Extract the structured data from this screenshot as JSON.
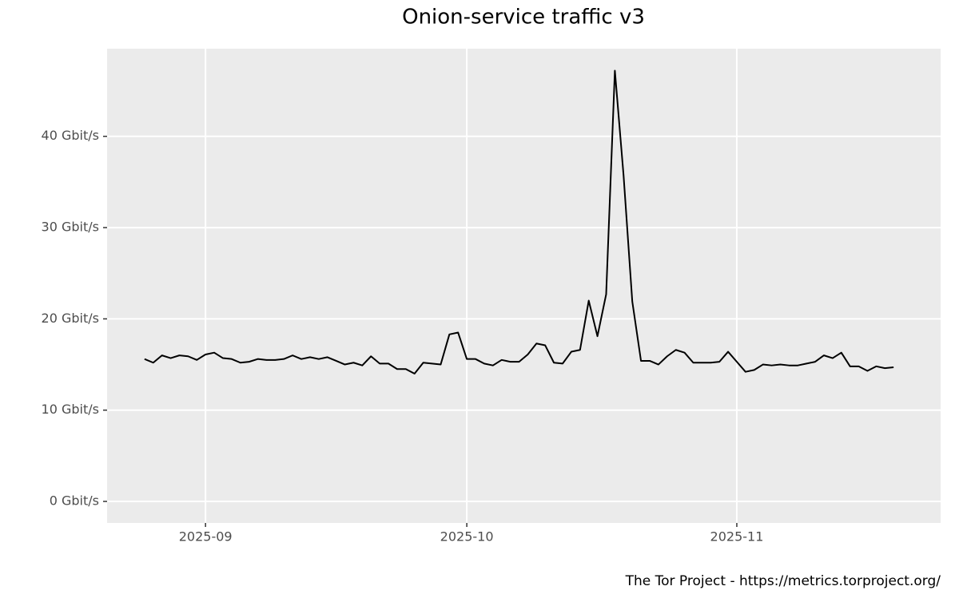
{
  "chart_data": {
    "type": "line",
    "title": "Onion-service traffic v3",
    "caption": "The Tor Project - https://metrics.torproject.org/",
    "color": "#000000",
    "values": [
      15.6,
      15.2,
      16.0,
      15.7,
      16.0,
      15.9,
      15.5,
      16.1,
      16.3,
      15.7,
      15.6,
      15.2,
      15.3,
      15.6,
      15.5,
      15.5,
      15.6,
      16.0,
      15.6,
      15.8,
      15.6,
      15.8,
      15.4,
      15.0,
      15.2,
      14.9,
      15.9,
      15.1,
      15.1,
      14.5,
      14.5,
      14.0,
      15.2,
      15.1,
      15.0,
      18.3,
      18.5,
      15.6,
      15.6,
      15.1,
      14.9,
      15.5,
      15.3,
      15.3,
      16.1,
      17.3,
      17.1,
      15.2,
      15.1,
      16.4,
      16.6,
      22.0,
      18.1,
      22.7,
      47.2,
      35.7,
      21.9,
      15.4,
      15.4,
      15.0,
      15.9,
      16.6,
      16.3,
      15.2,
      15.2,
      15.2,
      15.3,
      16.4,
      15.3,
      14.2,
      14.4,
      15.0,
      14.9,
      15.0,
      14.9,
      14.9,
      15.1,
      15.3,
      16.0,
      15.7,
      16.3,
      14.8,
      14.8,
      14.3,
      14.8,
      14.6,
      14.7
    ],
    "xlim": [
      -4.3,
      91.4
    ],
    "xticks": [
      {
        "value": 7,
        "label": "2025-09"
      },
      {
        "value": 37,
        "label": "2025-10"
      },
      {
        "value": 68,
        "label": "2025-11"
      }
    ],
    "ylim": [
      -2.36,
      49.6
    ],
    "yticks": [
      {
        "value": 0,
        "label": "0 Gbit/s"
      },
      {
        "value": 10,
        "label": "10 Gbit/s"
      },
      {
        "value": 20,
        "label": "20 Gbit/s"
      },
      {
        "value": 30,
        "label": "30 Gbit/s"
      },
      {
        "value": 40,
        "label": "40 Gbit/s"
      }
    ],
    "grid": true
  }
}
